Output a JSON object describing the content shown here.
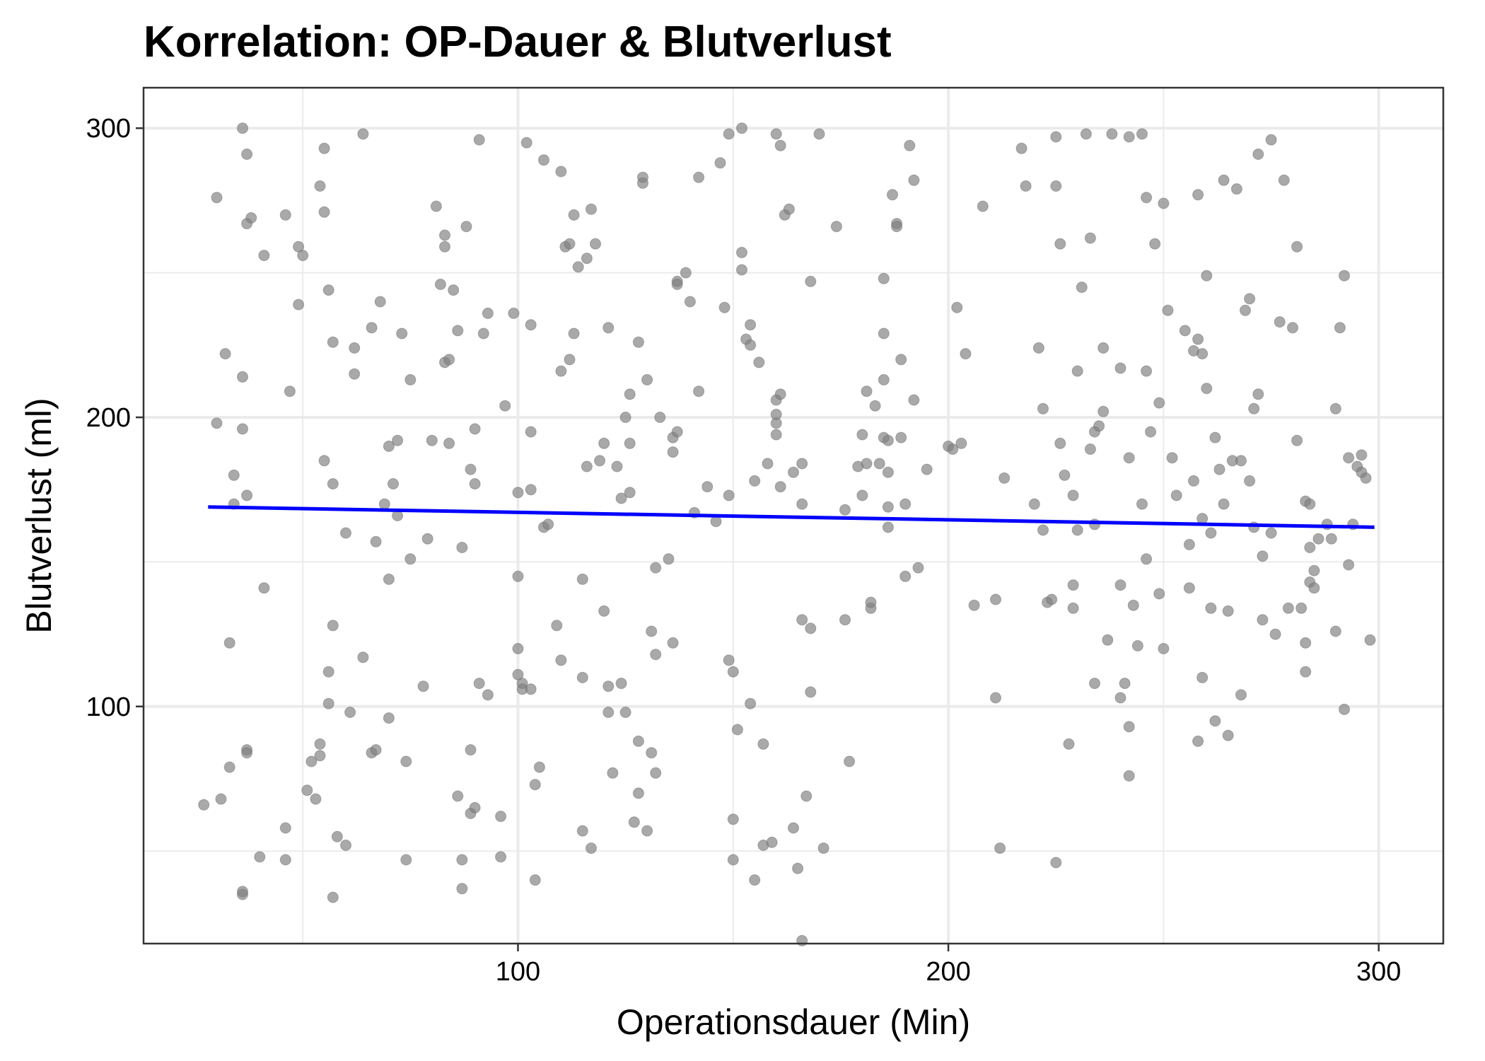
{
  "colors": {
    "points": "#808080",
    "trend_line": "#0000ff",
    "grid": "#ebebeb",
    "panel_border": "#333333"
  },
  "chart_data": {
    "type": "scatter",
    "title": "Korrelation: OP-Dauer & Blutverlust",
    "xlabel": "Operationsdauer (Min)",
    "ylabel": "Blutverlust (ml)",
    "xlim": [
      13,
      315
    ],
    "ylim": [
      18,
      314
    ],
    "xticks": [
      100,
      200,
      300
    ],
    "yticks": [
      100,
      200,
      300
    ],
    "grid": true,
    "trend_line": {
      "method": "linear",
      "x": [
        28,
        299
      ],
      "y": [
        169,
        162
      ]
    },
    "points": [
      [
        27,
        66
      ],
      [
        30,
        276
      ],
      [
        30,
        198
      ],
      [
        31,
        68
      ],
      [
        32,
        222
      ],
      [
        33,
        122
      ],
      [
        33,
        79
      ],
      [
        34,
        170
      ],
      [
        34,
        180
      ],
      [
        36,
        35
      ],
      [
        36,
        36
      ],
      [
        36,
        300
      ],
      [
        36,
        214
      ],
      [
        36,
        196
      ],
      [
        37,
        85
      ],
      [
        37,
        84
      ],
      [
        37,
        291
      ],
      [
        37,
        267
      ],
      [
        37,
        173
      ],
      [
        38,
        269
      ],
      [
        40,
        48
      ],
      [
        41,
        256
      ],
      [
        41,
        141
      ],
      [
        46,
        270
      ],
      [
        46,
        58
      ],
      [
        46,
        47
      ],
      [
        47,
        209
      ],
      [
        49,
        259
      ],
      [
        49,
        239
      ],
      [
        50,
        256
      ],
      [
        51,
        71
      ],
      [
        52,
        81
      ],
      [
        53,
        68
      ],
      [
        54,
        83
      ],
      [
        54,
        280
      ],
      [
        54,
        87
      ],
      [
        55,
        293
      ],
      [
        55,
        185
      ],
      [
        55,
        271
      ],
      [
        56,
        244
      ],
      [
        56,
        112
      ],
      [
        56,
        101
      ],
      [
        57,
        34
      ],
      [
        57,
        226
      ],
      [
        57,
        177
      ],
      [
        57,
        128
      ],
      [
        58,
        55
      ],
      [
        60,
        160
      ],
      [
        60,
        52
      ],
      [
        61,
        98
      ],
      [
        62,
        215
      ],
      [
        62,
        224
      ],
      [
        64,
        298
      ],
      [
        64,
        117
      ],
      [
        66,
        84
      ],
      [
        66,
        231
      ],
      [
        67,
        85
      ],
      [
        67,
        157
      ],
      [
        68,
        240
      ],
      [
        69,
        170
      ],
      [
        70,
        190
      ],
      [
        70,
        96
      ],
      [
        70,
        144
      ],
      [
        71,
        177
      ],
      [
        72,
        192
      ],
      [
        72,
        166
      ],
      [
        73,
        229
      ],
      [
        74,
        47
      ],
      [
        74,
        81
      ],
      [
        75,
        213
      ],
      [
        75,
        151
      ],
      [
        78,
        107
      ],
      [
        79,
        158
      ],
      [
        80,
        192
      ],
      [
        81,
        273
      ],
      [
        82,
        246
      ],
      [
        83,
        263
      ],
      [
        83,
        259
      ],
      [
        83,
        219
      ],
      [
        84,
        191
      ],
      [
        84,
        220
      ],
      [
        85,
        244
      ],
      [
        86,
        230
      ],
      [
        86,
        69
      ],
      [
        87,
        155
      ],
      [
        87,
        47
      ],
      [
        87,
        37
      ],
      [
        88,
        266
      ],
      [
        89,
        182
      ],
      [
        89,
        63
      ],
      [
        89,
        85
      ],
      [
        90,
        177
      ],
      [
        90,
        196
      ],
      [
        90,
        65
      ],
      [
        91,
        108
      ],
      [
        91,
        296
      ],
      [
        92,
        229
      ],
      [
        93,
        236
      ],
      [
        93,
        104
      ],
      [
        96,
        62
      ],
      [
        96,
        48
      ],
      [
        97,
        204
      ],
      [
        99,
        236
      ],
      [
        100,
        145
      ],
      [
        100,
        174
      ],
      [
        100,
        120
      ],
      [
        100,
        111
      ],
      [
        101,
        108
      ],
      [
        101,
        106
      ],
      [
        102,
        295
      ],
      [
        103,
        175
      ],
      [
        103,
        232
      ],
      [
        103,
        195
      ],
      [
        103,
        106
      ],
      [
        104,
        40
      ],
      [
        104,
        73
      ],
      [
        105,
        79
      ],
      [
        106,
        162
      ],
      [
        106,
        289
      ],
      [
        107,
        163
      ],
      [
        109,
        128
      ],
      [
        110,
        285
      ],
      [
        110,
        216
      ],
      [
        110,
        116
      ],
      [
        111,
        259
      ],
      [
        112,
        220
      ],
      [
        112,
        260
      ],
      [
        113,
        270
      ],
      [
        113,
        229
      ],
      [
        114,
        252
      ],
      [
        115,
        144
      ],
      [
        115,
        110
      ],
      [
        115,
        57
      ],
      [
        116,
        255
      ],
      [
        116,
        183
      ],
      [
        117,
        272
      ],
      [
        117,
        51
      ],
      [
        118,
        260
      ],
      [
        119,
        185
      ],
      [
        120,
        191
      ],
      [
        120,
        133
      ],
      [
        121,
        231
      ],
      [
        121,
        107
      ],
      [
        121,
        98
      ],
      [
        122,
        77
      ],
      [
        123,
        183
      ],
      [
        124,
        108
      ],
      [
        124,
        172
      ],
      [
        125,
        200
      ],
      [
        125,
        98
      ],
      [
        126,
        191
      ],
      [
        126,
        208
      ],
      [
        126,
        174
      ],
      [
        127,
        60
      ],
      [
        128,
        226
      ],
      [
        128,
        88
      ],
      [
        128,
        70
      ],
      [
        129,
        283
      ],
      [
        129,
        281
      ],
      [
        130,
        213
      ],
      [
        130,
        57
      ],
      [
        131,
        84
      ],
      [
        131,
        126
      ],
      [
        132,
        148
      ],
      [
        132,
        118
      ],
      [
        132,
        77
      ],
      [
        133,
        200
      ],
      [
        135,
        151
      ],
      [
        136,
        193
      ],
      [
        136,
        188
      ],
      [
        136,
        122
      ],
      [
        137,
        247
      ],
      [
        137,
        246
      ],
      [
        137,
        195
      ],
      [
        139,
        250
      ],
      [
        140,
        240
      ],
      [
        141,
        167
      ],
      [
        142,
        283
      ],
      [
        142,
        209
      ],
      [
        144,
        176
      ],
      [
        146,
        164
      ],
      [
        147,
        288
      ],
      [
        148,
        238
      ],
      [
        149,
        298
      ],
      [
        149,
        116
      ],
      [
        149,
        173
      ],
      [
        150,
        112
      ],
      [
        150,
        47
      ],
      [
        150,
        61
      ],
      [
        151,
        92
      ],
      [
        152,
        300
      ],
      [
        152,
        257
      ],
      [
        152,
        251
      ],
      [
        153,
        227
      ],
      [
        154,
        225
      ],
      [
        154,
        232
      ],
      [
        154,
        101
      ],
      [
        155,
        178
      ],
      [
        155,
        40
      ],
      [
        156,
        219
      ],
      [
        157,
        52
      ],
      [
        157,
        87
      ],
      [
        158,
        184
      ],
      [
        159,
        53
      ],
      [
        160,
        298
      ],
      [
        160,
        206
      ],
      [
        160,
        198
      ],
      [
        160,
        201
      ],
      [
        160,
        194
      ],
      [
        161,
        294
      ],
      [
        161,
        176
      ],
      [
        161,
        208
      ],
      [
        162,
        270
      ],
      [
        163,
        272
      ],
      [
        164,
        58
      ],
      [
        164,
        181
      ],
      [
        165,
        44
      ],
      [
        166,
        184
      ],
      [
        166,
        130
      ],
      [
        166,
        170
      ],
      [
        166,
        19
      ],
      [
        167,
        69
      ],
      [
        168,
        247
      ],
      [
        168,
        105
      ],
      [
        168,
        127
      ],
      [
        170,
        298
      ],
      [
        171,
        51
      ],
      [
        174,
        266
      ],
      [
        176,
        130
      ],
      [
        176,
        168
      ],
      [
        177,
        81
      ],
      [
        179,
        183
      ],
      [
        180,
        194
      ],
      [
        180,
        173
      ],
      [
        181,
        209
      ],
      [
        181,
        184
      ],
      [
        182,
        134
      ],
      [
        182,
        136
      ],
      [
        183,
        204
      ],
      [
        184,
        184
      ],
      [
        185,
        248
      ],
      [
        185,
        229
      ],
      [
        185,
        193
      ],
      [
        185,
        213
      ],
      [
        186,
        192
      ],
      [
        186,
        181
      ],
      [
        186,
        162
      ],
      [
        186,
        169
      ],
      [
        187,
        277
      ],
      [
        188,
        267
      ],
      [
        188,
        266
      ],
      [
        189,
        193
      ],
      [
        189,
        220
      ],
      [
        190,
        170
      ],
      [
        190,
        145
      ],
      [
        191,
        294
      ],
      [
        192,
        282
      ],
      [
        192,
        206
      ],
      [
        193,
        148
      ],
      [
        195,
        182
      ],
      [
        200,
        190
      ],
      [
        201,
        189
      ],
      [
        202,
        238
      ],
      [
        203,
        191
      ],
      [
        204,
        222
      ],
      [
        206,
        135
      ],
      [
        208,
        273
      ],
      [
        211,
        137
      ],
      [
        211,
        103
      ],
      [
        212,
        51
      ],
      [
        213,
        179
      ],
      [
        217,
        293
      ],
      [
        218,
        280
      ],
      [
        220,
        170
      ],
      [
        221,
        224
      ],
      [
        222,
        161
      ],
      [
        222,
        203
      ],
      [
        223,
        136
      ],
      [
        224,
        137
      ],
      [
        225,
        297
      ],
      [
        225,
        280
      ],
      [
        225,
        46
      ],
      [
        226,
        191
      ],
      [
        226,
        260
      ],
      [
        227,
        180
      ],
      [
        228,
        87
      ],
      [
        229,
        134
      ],
      [
        229,
        142
      ],
      [
        229,
        173
      ],
      [
        230,
        216
      ],
      [
        230,
        161
      ],
      [
        231,
        245
      ],
      [
        232,
        298
      ],
      [
        233,
        262
      ],
      [
        233,
        189
      ],
      [
        234,
        195
      ],
      [
        234,
        108
      ],
      [
        234,
        163
      ],
      [
        235,
        197
      ],
      [
        236,
        224
      ],
      [
        236,
        202
      ],
      [
        237,
        123
      ],
      [
        238,
        298
      ],
      [
        240,
        217
      ],
      [
        240,
        142
      ],
      [
        240,
        103
      ],
      [
        241,
        108
      ],
      [
        242,
        297
      ],
      [
        242,
        186
      ],
      [
        242,
        93
      ],
      [
        242,
        76
      ],
      [
        243,
        135
      ],
      [
        244,
        121
      ],
      [
        245,
        298
      ],
      [
        245,
        170
      ],
      [
        246,
        276
      ],
      [
        246,
        216
      ],
      [
        246,
        151
      ],
      [
        247,
        195
      ],
      [
        248,
        260
      ],
      [
        249,
        205
      ],
      [
        249,
        139
      ],
      [
        250,
        120
      ],
      [
        250,
        274
      ],
      [
        251,
        237
      ],
      [
        252,
        186
      ],
      [
        253,
        173
      ],
      [
        255,
        230
      ],
      [
        256,
        141
      ],
      [
        256,
        156
      ],
      [
        257,
        223
      ],
      [
        257,
        178
      ],
      [
        258,
        277
      ],
      [
        258,
        227
      ],
      [
        258,
        88
      ],
      [
        259,
        165
      ],
      [
        259,
        110
      ],
      [
        259,
        222
      ],
      [
        260,
        249
      ],
      [
        260,
        210
      ],
      [
        261,
        160
      ],
      [
        261,
        134
      ],
      [
        262,
        193
      ],
      [
        262,
        95
      ],
      [
        263,
        182
      ],
      [
        264,
        282
      ],
      [
        264,
        170
      ],
      [
        265,
        133
      ],
      [
        265,
        90
      ],
      [
        266,
        185
      ],
      [
        267,
        279
      ],
      [
        268,
        104
      ],
      [
        268,
        185
      ],
      [
        269,
        237
      ],
      [
        270,
        241
      ],
      [
        270,
        178
      ],
      [
        271,
        203
      ],
      [
        271,
        162
      ],
      [
        272,
        208
      ],
      [
        272,
        291
      ],
      [
        273,
        130
      ],
      [
        273,
        152
      ],
      [
        275,
        296
      ],
      [
        275,
        160
      ],
      [
        276,
        125
      ],
      [
        277,
        233
      ],
      [
        278,
        282
      ],
      [
        279,
        134
      ],
      [
        280,
        231
      ],
      [
        281,
        259
      ],
      [
        281,
        192
      ],
      [
        282,
        134
      ],
      [
        283,
        112
      ],
      [
        283,
        171
      ],
      [
        283,
        122
      ],
      [
        284,
        155
      ],
      [
        284,
        143
      ],
      [
        284,
        170
      ],
      [
        285,
        141
      ],
      [
        285,
        147
      ],
      [
        286,
        158
      ],
      [
        288,
        163
      ],
      [
        289,
        158
      ],
      [
        290,
        203
      ],
      [
        290,
        126
      ],
      [
        291,
        231
      ],
      [
        292,
        99
      ],
      [
        292,
        249
      ],
      [
        293,
        149
      ],
      [
        293,
        186
      ],
      [
        294,
        163
      ],
      [
        295,
        183
      ],
      [
        296,
        187
      ],
      [
        296,
        181
      ],
      [
        297,
        179
      ],
      [
        298,
        123
      ]
    ]
  }
}
